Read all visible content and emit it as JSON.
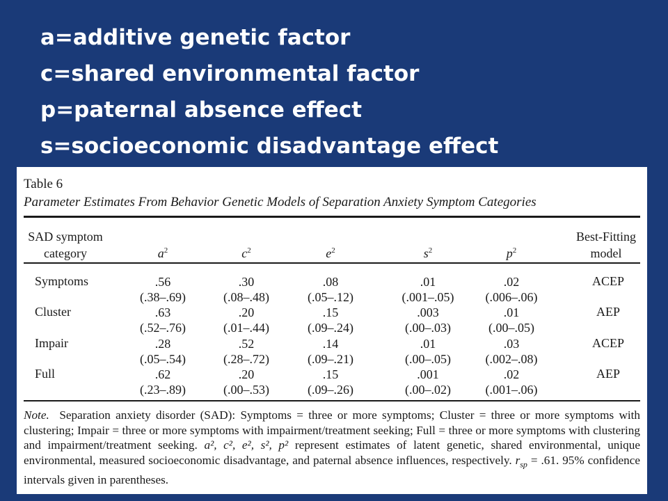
{
  "definitions": [
    "a=additive genetic factor",
    "c=shared environmental factor",
    "p=paternal absence effect",
    "s=socioeconomic disadvantage effect"
  ],
  "table": {
    "number": "Table 6",
    "title": "Parameter Estimates From Behavior Genetic Models of Separation Anxiety Symptom Categories",
    "headers": {
      "category_line1": "SAD symptom",
      "category_line2": "category",
      "a": "a",
      "c": "c",
      "e": "e",
      "s": "s",
      "p": "p",
      "squared": "2",
      "model_line1": "Best-Fitting",
      "model_line2": "model"
    },
    "rows": [
      {
        "label": "Symptoms",
        "values": [
          ".56",
          ".30",
          ".08",
          ".01",
          ".02"
        ],
        "cis": [
          "(.38–.69)",
          "(.08–.48)",
          "(.05–.12)",
          "(.001–.05)",
          "(.006–.06)"
        ],
        "model": "ACEP"
      },
      {
        "label": "Cluster",
        "values": [
          ".63",
          ".20",
          ".15",
          ".003",
          ".01"
        ],
        "cis": [
          "(.52–.76)",
          "(.01–.44)",
          "(.09–.24)",
          "(.00–.03)",
          "(.00–.05)"
        ],
        "model": "AEP"
      },
      {
        "label": "Impair",
        "values": [
          ".28",
          ".52",
          ".14",
          ".01",
          ".03"
        ],
        "cis": [
          "(.05–.54)",
          "(.28–.72)",
          "(.09–.21)",
          "(.00–.05)",
          "(.002–.08)"
        ],
        "model": "ACEP"
      },
      {
        "label": "Full",
        "values": [
          ".62",
          ".20",
          ".15",
          ".001",
          ".02"
        ],
        "cis": [
          "(.23–.89)",
          "(.00–.53)",
          "(.09–.26)",
          "(.00–.02)",
          "(.001–.06)"
        ],
        "model": "AEP"
      }
    ],
    "note": {
      "label": "Note.",
      "part1": "Separation anxiety disorder (SAD): Symptoms = three or more symptoms; Cluster = three or more symptoms with clustering; Impair = three or more symptoms with impairment/treatment seeking; Full = three or more symptoms with clustering and impairment/treatment seeking.",
      "symbols": "a², c², e², s², p²",
      "part2": "represent estimates of latent genetic, shared environmental, unique environmental, measured socioeconomic disadvantage, and paternal absence influences, respectively.",
      "rsp_symbol": "r",
      "rsp_sub": "sp",
      "rsp_value": "= .61. 95% confidence intervals given in parentheses."
    }
  }
}
